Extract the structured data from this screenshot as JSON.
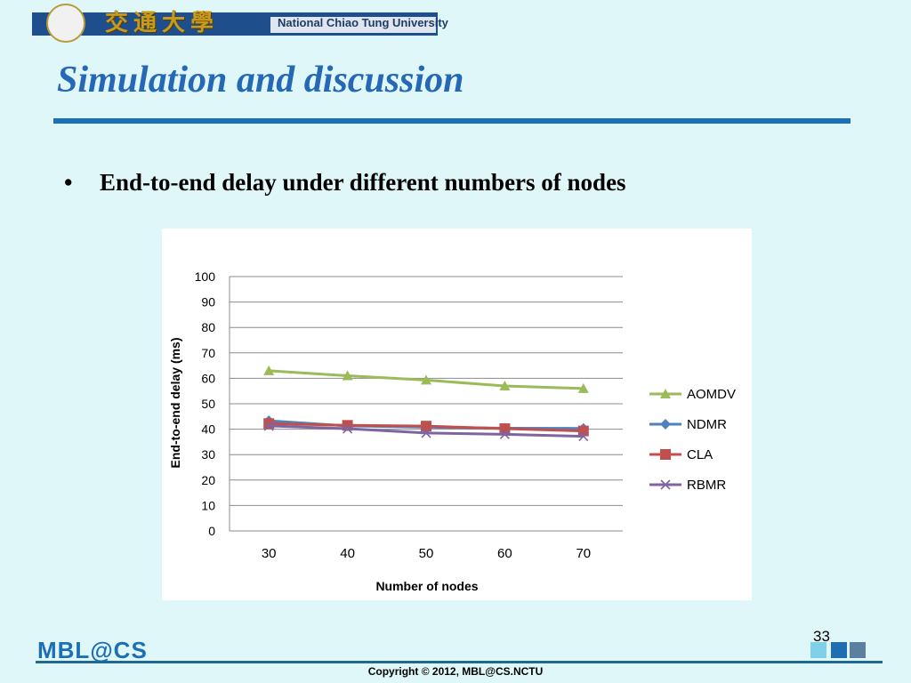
{
  "header": {
    "university_cn": "交通大學",
    "university_en": "National Chiao Tung University"
  },
  "slide": {
    "title": "Simulation and discussion",
    "bullet_marker": "•",
    "bullet_text": "End-to-end delay under different numbers of nodes"
  },
  "footer": {
    "logo_text": "MBL@CS",
    "copyright": "Copyright © 2012, MBL@CS.NCTU",
    "page_number": "33"
  },
  "colors": {
    "title": "#2568b5",
    "rule": "#1c6fb9",
    "background": "#e0f7fa"
  },
  "chart_data": {
    "type": "line",
    "title": "",
    "xlabel": "Number of nodes",
    "ylabel": "End-to-end  delay (ms)",
    "categories": [
      "30",
      "40",
      "50",
      "60",
      "70"
    ],
    "ylim": [
      0,
      100
    ],
    "yticks": [
      0,
      10,
      20,
      30,
      40,
      50,
      60,
      70,
      80,
      90,
      100
    ],
    "grid": true,
    "legend_position": "right",
    "series": [
      {
        "name": "AOMDV",
        "values": [
          63,
          61,
          59.3,
          57,
          56
        ],
        "color": "#9bbb59",
        "marker": "triangle"
      },
      {
        "name": "NDMR",
        "values": [
          43.3,
          41.3,
          40.8,
          40.4,
          40.3
        ],
        "color": "#4f81bd",
        "marker": "diamond"
      },
      {
        "name": "CLA",
        "values": [
          42.2,
          41.5,
          41.2,
          40.2,
          39.3
        ],
        "color": "#c0504d",
        "marker": "square"
      },
      {
        "name": "RBMR",
        "values": [
          41.3,
          40.2,
          38.5,
          38.0,
          37.2
        ],
        "color": "#8064a2",
        "marker": "x"
      }
    ]
  }
}
